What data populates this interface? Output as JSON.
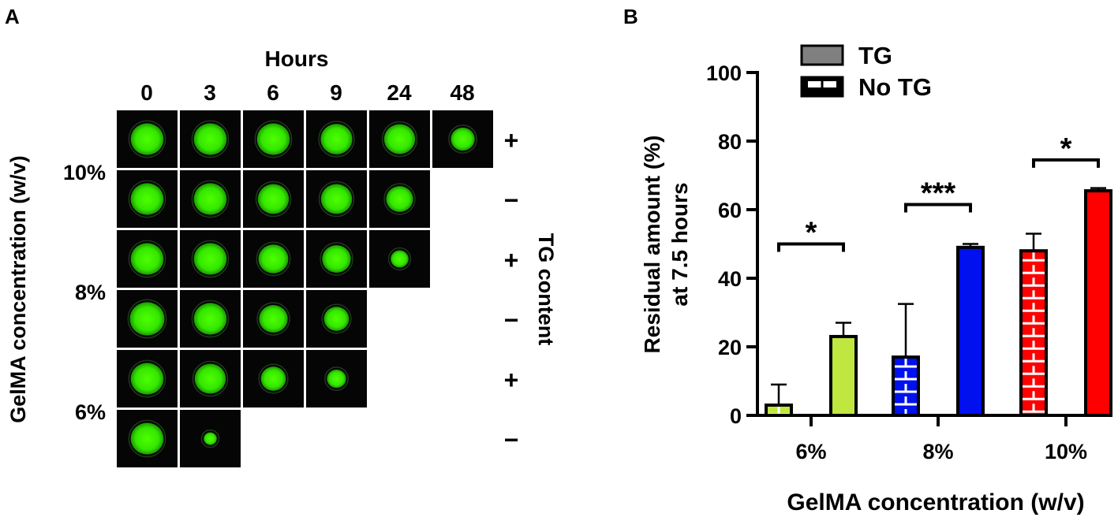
{
  "panel_a": {
    "letter": "A",
    "hours_label": "Hours",
    "hours": [
      "0",
      "3",
      "6",
      "9",
      "24",
      "48"
    ],
    "y_axis_label": "GelMA concentration (w/v)",
    "concentration_labels": [
      "10%",
      "8%",
      "6%"
    ],
    "right_axis_label": "TG content",
    "rows": [
      {
        "concentration": "10%",
        "tg_sign": "+",
        "cells": [
          0.55,
          0.55,
          0.55,
          0.53,
          0.52,
          0.4
        ]
      },
      {
        "concentration": "10%",
        "tg_sign": "−",
        "cells": [
          0.55,
          0.55,
          0.52,
          0.52,
          0.45
        ]
      },
      {
        "concentration": "8%",
        "tg_sign": "+",
        "cells": [
          0.55,
          0.55,
          0.5,
          0.48,
          0.3
        ]
      },
      {
        "concentration": "8%",
        "tg_sign": "−",
        "cells": [
          0.58,
          0.55,
          0.48,
          0.42
        ]
      },
      {
        "concentration": "6%",
        "tg_sign": "+",
        "cells": [
          0.55,
          0.52,
          0.42,
          0.32
        ]
      },
      {
        "concentration": "6%",
        "tg_sign": "−",
        "cells": [
          0.55,
          0.22
        ]
      }
    ],
    "spot_color": "#33ee00"
  },
  "panel_b": {
    "letter": "B",
    "legend": [
      {
        "label": "TG",
        "pattern": "solid"
      },
      {
        "label": "No TG",
        "pattern": "checked"
      }
    ]
  },
  "chart_data": {
    "type": "bar",
    "categories": [
      "6%",
      "8%",
      "10%"
    ],
    "series": [
      {
        "name": "No TG",
        "values": [
          3,
          17,
          48
        ],
        "errors": [
          6,
          15.5,
          5
        ],
        "pattern": "checked"
      },
      {
        "name": "TG",
        "values": [
          23,
          49,
          65.5
        ],
        "errors": [
          4,
          1,
          0.8
        ],
        "pattern": "solid"
      }
    ],
    "category_colors": [
      "#c0e640",
      "#0010ee",
      "#ff0000"
    ],
    "significance": [
      "*",
      "***",
      "*"
    ],
    "xlabel": "GelMA concentration (w/v)",
    "ylabel_line1": "Residual amount (%)",
    "ylabel_line2": "at 7.5 hours",
    "ylim": [
      0,
      100
    ],
    "yticks": [
      "0",
      "20",
      "40",
      "60",
      "80",
      "100"
    ],
    "grid": false,
    "legend_position": "top-left"
  }
}
